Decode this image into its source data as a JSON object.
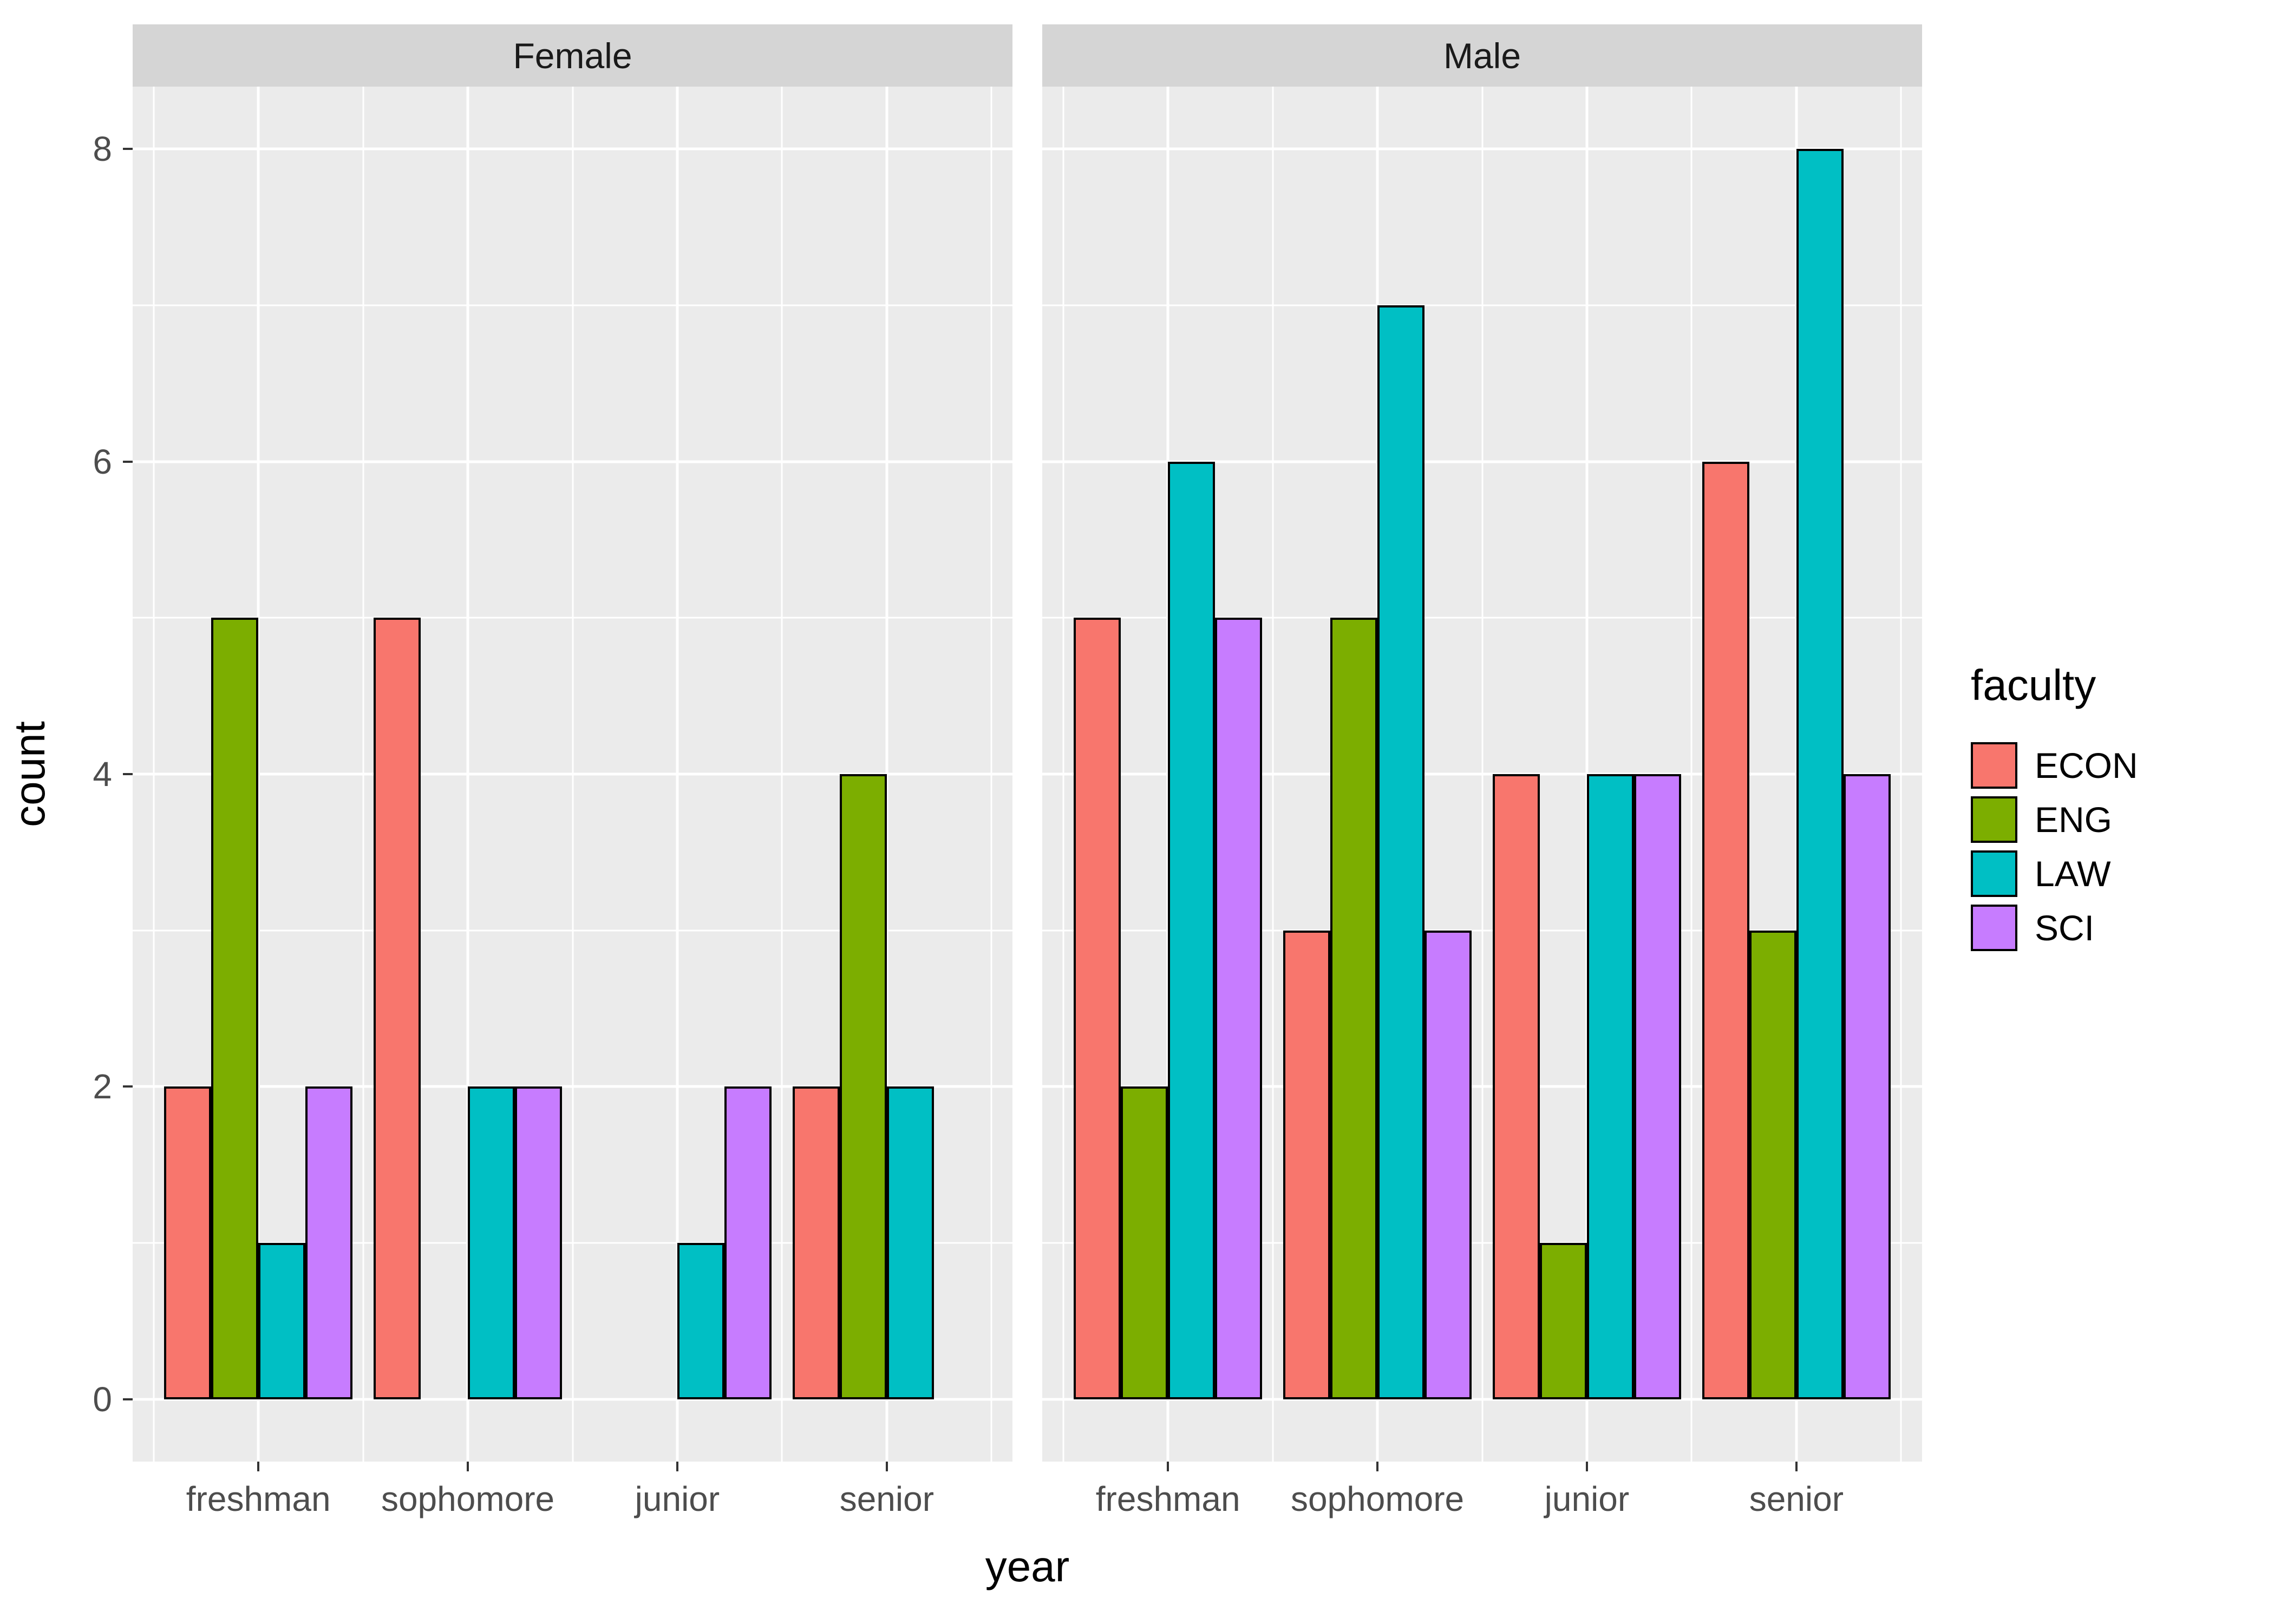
{
  "chart_data": {
    "type": "bar",
    "title": "",
    "xlabel": "year",
    "ylabel": "count",
    "legend_title": "faculty",
    "legend_position": "right",
    "facets": [
      "Female",
      "Male"
    ],
    "categories": [
      "freshman",
      "sophomore",
      "junior",
      "senior"
    ],
    "y_ticks": [
      0,
      2,
      4,
      6,
      8
    ],
    "ylim": [
      -0.4,
      8.4
    ],
    "grid": true,
    "series": [
      {
        "name": "ECON",
        "color": "#F8766D",
        "values": {
          "Female": [
            2,
            5,
            null,
            2
          ],
          "Male": [
            5,
            3,
            4,
            6
          ]
        }
      },
      {
        "name": "ENG",
        "color": "#7CAE00",
        "values": {
          "Female": [
            5,
            null,
            null,
            4
          ],
          "Male": [
            2,
            5,
            1,
            3
          ]
        }
      },
      {
        "name": "LAW",
        "color": "#00BFC4",
        "values": {
          "Female": [
            1,
            2,
            1,
            2
          ],
          "Male": [
            6,
            7,
            4,
            8
          ]
        }
      },
      {
        "name": "SCI",
        "color": "#C77CFF",
        "values": {
          "Female": [
            2,
            2,
            2,
            null
          ],
          "Male": [
            5,
            3,
            4,
            4
          ]
        }
      }
    ],
    "style": {
      "panel_background": "#EBEBEB",
      "strip_background": "#D5D5D5",
      "gridline_color": "#FFFFFF",
      "bar_outline": "#000000",
      "tick_color": "#333333",
      "tick_label_color": "#4D4D4D",
      "title_color": "#000000"
    }
  }
}
